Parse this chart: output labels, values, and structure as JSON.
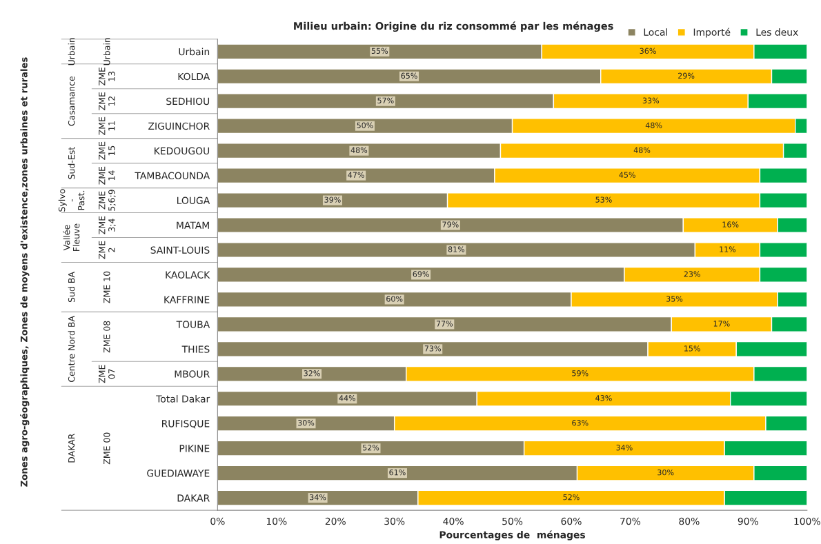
{
  "chart_data": {
    "type": "bar",
    "orientation": "horizontal",
    "stacked": true,
    "title": "Milieu urbain: Origine du riz consommé par les ménages",
    "xlabel": "Pourcentages de  ménages",
    "categories": [
      "Urbain",
      "KOLDA",
      "SEDHIOU",
      "ZIGUINCHOR",
      "KEDOUGOU",
      "TAMBACOUNDA",
      "LOUGA",
      "MATAM",
      "SAINT-LOUIS",
      "KAOLACK",
      "KAFFRINE",
      "TOUBA",
      "THIES",
      "MBOUR",
      "Total Dakar",
      "RUFISQUE",
      "PIKINE",
      "GUEDIAWAYE",
      "DAKAR"
    ],
    "series": [
      {
        "name": "Local",
        "color": "#8c8461",
        "values": [
          55,
          65,
          57,
          50,
          48,
          47,
          39,
          79,
          81,
          69,
          60,
          77,
          73,
          32,
          44,
          30,
          52,
          61,
          34
        ],
        "value_labels": [
          "55%",
          "65%",
          "57%",
          "50%",
          "48%",
          "47%",
          "39%",
          "79%",
          "81%",
          "69%",
          "60%",
          "77%",
          "73%",
          "32%",
          "44%",
          "30%",
          "52%",
          "61%",
          "34%"
        ]
      },
      {
        "name": "Importé",
        "color": "#ffc000",
        "values": [
          36,
          29,
          33,
          48,
          48,
          45,
          53,
          16,
          11,
          23,
          35,
          17,
          15,
          59,
          43,
          63,
          34,
          30,
          52
        ],
        "value_labels": [
          "36%",
          "29%",
          "33%",
          "48%",
          "48%",
          "45%",
          "53%",
          "16%",
          "11%",
          "23%",
          "35%",
          "17%",
          "15%",
          "59%",
          "43%",
          "63%",
          "34%",
          "30%",
          "52%"
        ]
      },
      {
        "name": "Les deux",
        "color": "#00b050",
        "values": [
          9,
          6,
          10,
          2,
          4,
          8,
          8,
          5,
          8,
          8,
          5,
          6,
          12,
          9,
          13,
          7,
          14,
          9,
          14
        ]
      }
    ],
    "xlim": [
      0,
      100
    ],
    "xticks": [
      {
        "value": 0,
        "label": "0%"
      },
      {
        "value": 10,
        "label": "10%"
      },
      {
        "value": 20,
        "label": "20%"
      },
      {
        "value": 30,
        "label": "30%"
      },
      {
        "value": 40,
        "label": "40%"
      },
      {
        "value": 50,
        "label": "50%"
      },
      {
        "value": 60,
        "label": "60%"
      },
      {
        "value": 70,
        "label": "70%"
      },
      {
        "value": 80,
        "label": "80%"
      },
      {
        "value": 90,
        "label": "90%"
      },
      {
        "value": 100,
        "label": "100%"
      }
    ],
    "grid": false,
    "legend": "top right",
    "annotations": [
      "Urbain",
      "Casamance",
      "Sud-Est",
      "Sylvo\n-\nPast.",
      "Vallée\nFleuve",
      "Sud BA",
      "Centre Nord BA",
      "DAKAR",
      "Urbain",
      "ZME\n13",
      "ZME\n12",
      "ZME\n11",
      "ZME\n15",
      "ZME\n14",
      "ZME\n5;6;9",
      "ZME\n3;4",
      "ZME\n2",
      "ZME 10",
      "ZME 08",
      "ZME\n07",
      "ZME 00",
      "Zones agro-géographiques, Zones de moyens d'existence,zones urbaines et rurales"
    ]
  }
}
